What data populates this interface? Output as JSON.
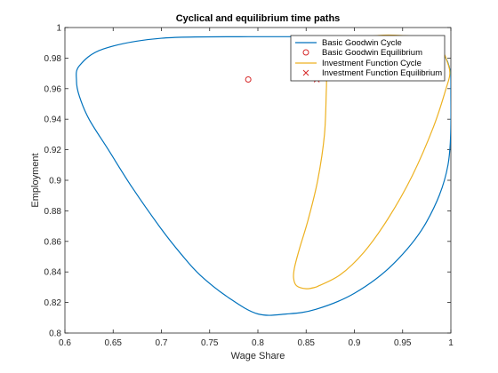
{
  "chart_data": {
    "type": "line",
    "title": "Cyclical and equilibrium time paths",
    "xlabel": "Wage Share",
    "ylabel": "Employment",
    "xlim": [
      0.6,
      1.0
    ],
    "ylim": [
      0.8,
      1.0
    ],
    "xticks": [
      "0.6",
      "0.65",
      "0.7",
      "0.75",
      "0.8",
      "0.85",
      "0.9",
      "0.95",
      "1"
    ],
    "yticks": [
      "0.8",
      "0.82",
      "0.84",
      "0.86",
      "0.88",
      "0.9",
      "0.92",
      "0.94",
      "0.96",
      "0.98",
      "1"
    ],
    "grid": false,
    "legend_position": "top-right",
    "series": [
      {
        "name": "Basic Goodwin Cycle",
        "kind": "line",
        "color": "#0072BD",
        "x": [
          0.79,
          0.7,
          0.64,
          0.615,
          0.612,
          0.615,
          0.625,
          0.645,
          0.67,
          0.7,
          0.72,
          0.74,
          0.77,
          0.8,
          0.83,
          0.86,
          0.9,
          0.94,
          0.975,
          0.997,
          1.0,
          0.998,
          0.99,
          0.975,
          0.95,
          0.92,
          0.9,
          0.88,
          0.86,
          0.85,
          0.84,
          0.82,
          0.79
        ],
        "y": [
          0.994,
          0.993,
          0.986,
          0.975,
          0.965,
          0.955,
          0.94,
          0.92,
          0.895,
          0.868,
          0.852,
          0.838,
          0.823,
          0.8125,
          0.8125,
          0.8155,
          0.826,
          0.845,
          0.873,
          0.91,
          0.96,
          0.975,
          0.984,
          0.99,
          0.993,
          0.994,
          0.994,
          0.994,
          0.994,
          0.994,
          0.994,
          0.994,
          0.994
        ]
      },
      {
        "name": "Basic Goodwin Equilibrium",
        "kind": "marker-circle",
        "color": "#D62728",
        "x": [
          0.79
        ],
        "y": [
          0.966
        ]
      },
      {
        "name": "Investment Function Cycle",
        "kind": "line",
        "color": "#EDB120",
        "x": [
          0.86,
          0.885,
          0.91,
          0.935,
          0.96,
          0.982,
          0.995,
          0.999,
          0.996,
          0.99,
          0.97,
          0.94,
          0.915,
          0.895,
          0.88,
          0.872,
          0.871,
          0.869,
          0.862,
          0.852,
          0.843,
          0.838,
          0.837,
          0.84,
          0.85,
          0.86
        ],
        "y": [
          0.83,
          0.838,
          0.853,
          0.875,
          0.903,
          0.935,
          0.96,
          0.97,
          0.978,
          0.985,
          0.993,
          0.995,
          0.994,
          0.99,
          0.982,
          0.973,
          0.96,
          0.93,
          0.9,
          0.874,
          0.855,
          0.843,
          0.836,
          0.831,
          0.829,
          0.83
        ]
      },
      {
        "name": "Investment Function Equilibrium",
        "kind": "marker-x",
        "color": "#D62728",
        "x": [
          0.861
        ],
        "y": [
          0.966
        ]
      }
    ]
  }
}
